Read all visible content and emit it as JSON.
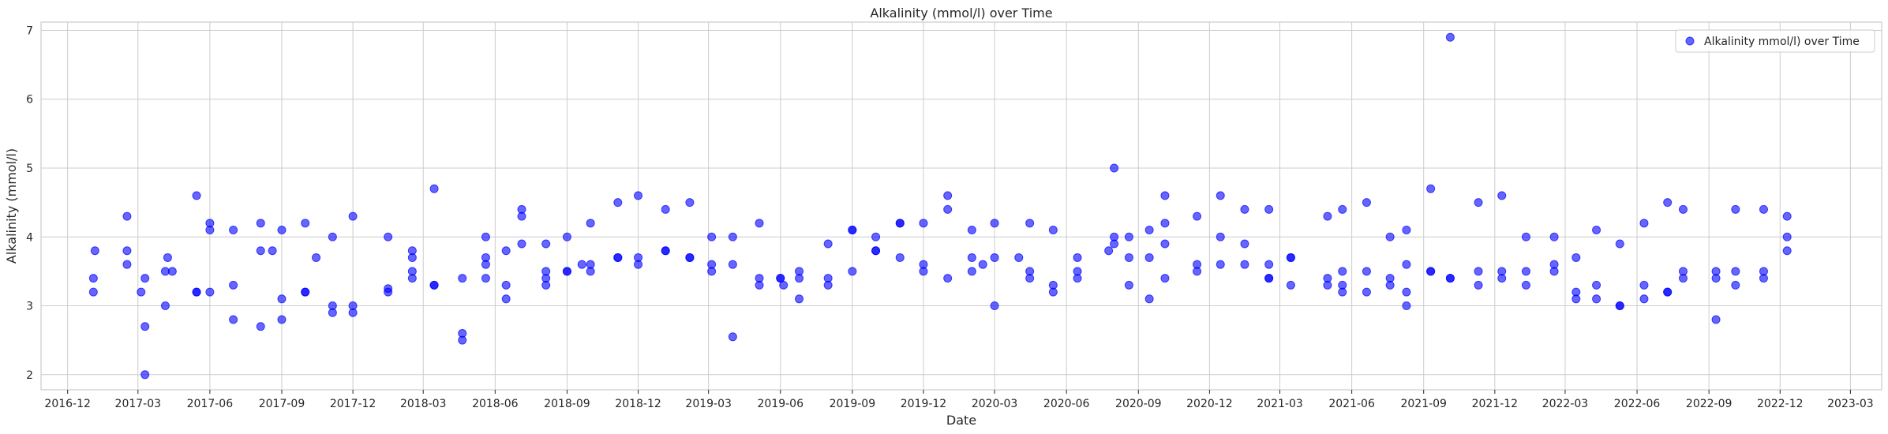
{
  "chart_data": {
    "type": "scatter",
    "title": "Alkalinity (mmol/l) over Time",
    "xlabel": "Date",
    "ylabel": "Alkalinity (mmol/l)",
    "x_axis": {
      "type": "date",
      "range": [
        "2016-10-28",
        "2023-04-10"
      ]
    },
    "ylim": [
      1.78,
      7.12
    ],
    "x_ticks": [
      "2016-12",
      "2017-03",
      "2017-06",
      "2017-09",
      "2017-12",
      "2018-03",
      "2018-06",
      "2018-09",
      "2018-12",
      "2019-03",
      "2019-06",
      "2019-09",
      "2019-12",
      "2020-03",
      "2020-06",
      "2020-09",
      "2020-12",
      "2021-03",
      "2021-06",
      "2021-09",
      "2021-12",
      "2022-03",
      "2022-06",
      "2022-09",
      "2022-12",
      "2023-03"
    ],
    "y_ticks": [
      2,
      3,
      4,
      5,
      6,
      7
    ],
    "grid": true,
    "legend": {
      "position": "top-right",
      "entries": [
        "Alkalinity mmol/l) over Time"
      ]
    },
    "marker_color": "#0000ff",
    "marker_alpha": 0.6,
    "series": [
      {
        "name": "Alkalinity mmol/l) over Time",
        "points": [
          [
            "2017-01-03",
            3.2
          ],
          [
            "2017-01-03",
            3.4
          ],
          [
            "2017-01-05",
            3.8
          ],
          [
            "2017-02-15",
            4.3
          ],
          [
            "2017-02-15",
            3.8
          ],
          [
            "2017-02-15",
            3.6
          ],
          [
            "2017-03-05",
            3.2
          ],
          [
            "2017-03-10",
            3.4
          ],
          [
            "2017-03-10",
            2.7
          ],
          [
            "2017-03-10",
            2.0
          ],
          [
            "2017-04-05",
            3.0
          ],
          [
            "2017-04-05",
            3.5
          ],
          [
            "2017-04-08",
            3.7
          ],
          [
            "2017-04-14",
            3.5
          ],
          [
            "2017-05-15",
            4.6
          ],
          [
            "2017-05-15",
            3.2
          ],
          [
            "2017-05-15",
            3.2
          ],
          [
            "2017-06-01",
            4.2
          ],
          [
            "2017-06-01",
            4.1
          ],
          [
            "2017-06-01",
            3.2
          ],
          [
            "2017-07-01",
            4.1
          ],
          [
            "2017-07-01",
            3.3
          ],
          [
            "2017-07-01",
            2.8
          ],
          [
            "2017-08-05",
            3.8
          ],
          [
            "2017-08-05",
            4.2
          ],
          [
            "2017-08-05",
            2.7
          ],
          [
            "2017-08-20",
            3.8
          ],
          [
            "2017-09-01",
            4.1
          ],
          [
            "2017-09-01",
            3.1
          ],
          [
            "2017-09-01",
            2.8
          ],
          [
            "2017-10-01",
            4.2
          ],
          [
            "2017-10-01",
            3.2
          ],
          [
            "2017-10-01",
            3.2
          ],
          [
            "2017-10-15",
            3.7
          ],
          [
            "2017-11-05",
            4.0
          ],
          [
            "2017-11-05",
            3.0
          ],
          [
            "2017-11-05",
            2.9
          ],
          [
            "2017-12-01",
            4.3
          ],
          [
            "2017-12-01",
            3.0
          ],
          [
            "2017-12-01",
            2.9
          ],
          [
            "2018-01-15",
            4.0
          ],
          [
            "2018-01-15",
            3.25
          ],
          [
            "2018-01-15",
            3.2
          ],
          [
            "2018-02-15",
            3.8
          ],
          [
            "2018-02-15",
            3.7
          ],
          [
            "2018-02-15",
            3.5
          ],
          [
            "2018-02-15",
            3.4
          ],
          [
            "2018-03-15",
            4.7
          ],
          [
            "2018-03-15",
            3.3
          ],
          [
            "2018-03-15",
            3.3
          ],
          [
            "2018-04-20",
            3.4
          ],
          [
            "2018-04-20",
            2.6
          ],
          [
            "2018-04-20",
            2.5
          ],
          [
            "2018-05-20",
            4.0
          ],
          [
            "2018-05-20",
            3.7
          ],
          [
            "2018-05-20",
            3.6
          ],
          [
            "2018-05-20",
            3.4
          ],
          [
            "2018-06-15",
            3.8
          ],
          [
            "2018-06-15",
            3.3
          ],
          [
            "2018-06-15",
            3.1
          ],
          [
            "2018-07-05",
            4.4
          ],
          [
            "2018-07-05",
            4.3
          ],
          [
            "2018-07-05",
            3.9
          ],
          [
            "2018-08-05",
            3.9
          ],
          [
            "2018-08-05",
            3.5
          ],
          [
            "2018-08-05",
            3.4
          ],
          [
            "2018-08-05",
            3.3
          ],
          [
            "2018-09-01",
            4.0
          ],
          [
            "2018-09-01",
            3.5
          ],
          [
            "2018-09-01",
            3.5
          ],
          [
            "2018-09-20",
            3.6
          ],
          [
            "2018-10-01",
            4.2
          ],
          [
            "2018-10-01",
            3.6
          ],
          [
            "2018-10-01",
            3.5
          ],
          [
            "2018-11-05",
            4.5
          ],
          [
            "2018-11-05",
            3.7
          ],
          [
            "2018-11-05",
            3.7
          ],
          [
            "2018-12-01",
            4.6
          ],
          [
            "2018-12-01",
            3.7
          ],
          [
            "2018-12-01",
            3.6
          ],
          [
            "2019-01-05",
            4.4
          ],
          [
            "2019-01-05",
            3.8
          ],
          [
            "2019-01-05",
            3.8
          ],
          [
            "2019-02-05",
            4.5
          ],
          [
            "2019-02-05",
            3.7
          ],
          [
            "2019-02-05",
            3.7
          ],
          [
            "2019-03-05",
            4.0
          ],
          [
            "2019-03-05",
            3.6
          ],
          [
            "2019-03-05",
            3.5
          ],
          [
            "2019-04-01",
            4.0
          ],
          [
            "2019-04-01",
            3.6
          ],
          [
            "2019-04-01",
            2.55
          ],
          [
            "2019-05-05",
            4.2
          ],
          [
            "2019-05-05",
            3.4
          ],
          [
            "2019-05-05",
            3.3
          ],
          [
            "2019-06-01",
            3.4
          ],
          [
            "2019-06-01",
            3.4
          ],
          [
            "2019-06-05",
            3.3
          ],
          [
            "2019-06-25",
            3.5
          ],
          [
            "2019-06-25",
            3.4
          ],
          [
            "2019-06-25",
            3.1
          ],
          [
            "2019-08-01",
            3.9
          ],
          [
            "2019-08-01",
            3.4
          ],
          [
            "2019-08-01",
            3.3
          ],
          [
            "2019-09-01",
            4.1
          ],
          [
            "2019-09-01",
            4.1
          ],
          [
            "2019-09-01",
            3.5
          ],
          [
            "2019-10-01",
            4.0
          ],
          [
            "2019-10-01",
            3.8
          ],
          [
            "2019-10-01",
            3.8
          ],
          [
            "2019-11-01",
            4.2
          ],
          [
            "2019-11-01",
            4.2
          ],
          [
            "2019-11-01",
            3.7
          ],
          [
            "2019-12-01",
            4.2
          ],
          [
            "2019-12-01",
            3.6
          ],
          [
            "2019-12-01",
            3.5
          ],
          [
            "2020-01-01",
            4.6
          ],
          [
            "2020-01-01",
            4.4
          ],
          [
            "2020-01-01",
            3.4
          ],
          [
            "2020-02-01",
            4.1
          ],
          [
            "2020-02-01",
            3.7
          ],
          [
            "2020-02-01",
            3.5
          ],
          [
            "2020-02-15",
            3.6
          ],
          [
            "2020-03-01",
            4.2
          ],
          [
            "2020-03-01",
            3.7
          ],
          [
            "2020-03-01",
            3.0
          ],
          [
            "2020-04-01",
            3.7
          ],
          [
            "2020-04-15",
            4.2
          ],
          [
            "2020-04-15",
            3.5
          ],
          [
            "2020-04-15",
            3.4
          ],
          [
            "2020-05-15",
            4.1
          ],
          [
            "2020-05-15",
            3.3
          ],
          [
            "2020-05-15",
            3.2
          ],
          [
            "2020-06-15",
            3.7
          ],
          [
            "2020-06-15",
            3.5
          ],
          [
            "2020-06-15",
            3.4
          ],
          [
            "2020-07-25",
            3.8
          ],
          [
            "2020-08-01",
            5.0
          ],
          [
            "2020-08-01",
            4.0
          ],
          [
            "2020-08-01",
            3.9
          ],
          [
            "2020-08-20",
            4.0
          ],
          [
            "2020-08-20",
            3.7
          ],
          [
            "2020-08-20",
            3.3
          ],
          [
            "2020-09-15",
            4.1
          ],
          [
            "2020-09-15",
            3.7
          ],
          [
            "2020-09-15",
            3.1
          ],
          [
            "2020-10-05",
            4.6
          ],
          [
            "2020-10-05",
            4.2
          ],
          [
            "2020-10-05",
            3.9
          ],
          [
            "2020-10-05",
            3.4
          ],
          [
            "2020-11-15",
            4.3
          ],
          [
            "2020-11-15",
            3.6
          ],
          [
            "2020-11-15",
            3.5
          ],
          [
            "2020-12-15",
            4.6
          ],
          [
            "2020-12-15",
            4.0
          ],
          [
            "2020-12-15",
            3.6
          ],
          [
            "2021-01-15",
            4.4
          ],
          [
            "2021-01-15",
            3.9
          ],
          [
            "2021-01-15",
            3.6
          ],
          [
            "2021-02-15",
            4.4
          ],
          [
            "2021-02-15",
            3.6
          ],
          [
            "2021-02-15",
            3.4
          ],
          [
            "2021-02-15",
            3.4
          ],
          [
            "2021-03-15",
            3.7
          ],
          [
            "2021-03-15",
            3.7
          ],
          [
            "2021-03-15",
            3.3
          ],
          [
            "2021-05-01",
            4.3
          ],
          [
            "2021-05-01",
            3.4
          ],
          [
            "2021-05-01",
            3.3
          ],
          [
            "2021-05-20",
            4.4
          ],
          [
            "2021-05-20",
            3.5
          ],
          [
            "2021-05-20",
            3.3
          ],
          [
            "2021-05-20",
            3.2
          ],
          [
            "2021-06-20",
            4.5
          ],
          [
            "2021-06-20",
            3.5
          ],
          [
            "2021-06-20",
            3.2
          ],
          [
            "2021-07-20",
            4.0
          ],
          [
            "2021-07-20",
            3.4
          ],
          [
            "2021-07-20",
            3.3
          ],
          [
            "2021-08-10",
            4.1
          ],
          [
            "2021-08-10",
            3.6
          ],
          [
            "2021-08-10",
            3.2
          ],
          [
            "2021-08-10",
            3.0
          ],
          [
            "2021-09-10",
            4.7
          ],
          [
            "2021-09-10",
            3.5
          ],
          [
            "2021-09-10",
            3.5
          ],
          [
            "2021-10-05",
            6.9
          ],
          [
            "2021-10-05",
            3.4
          ],
          [
            "2021-10-05",
            3.4
          ],
          [
            "2021-11-10",
            4.5
          ],
          [
            "2021-11-10",
            3.5
          ],
          [
            "2021-11-10",
            3.3
          ],
          [
            "2021-12-10",
            4.6
          ],
          [
            "2021-12-10",
            3.5
          ],
          [
            "2021-12-10",
            3.4
          ],
          [
            "2022-01-10",
            4.0
          ],
          [
            "2022-01-10",
            3.5
          ],
          [
            "2022-01-10",
            3.3
          ],
          [
            "2022-02-15",
            4.0
          ],
          [
            "2022-02-15",
            3.6
          ],
          [
            "2022-02-15",
            3.5
          ],
          [
            "2022-03-15",
            3.7
          ],
          [
            "2022-03-15",
            3.2
          ],
          [
            "2022-03-15",
            3.1
          ],
          [
            "2022-04-10",
            4.1
          ],
          [
            "2022-04-10",
            3.3
          ],
          [
            "2022-04-10",
            3.1
          ],
          [
            "2022-05-10",
            3.9
          ],
          [
            "2022-05-10",
            3.0
          ],
          [
            "2022-05-10",
            3.0
          ],
          [
            "2022-06-10",
            4.2
          ],
          [
            "2022-06-10",
            3.3
          ],
          [
            "2022-06-10",
            3.1
          ],
          [
            "2022-07-10",
            4.5
          ],
          [
            "2022-07-10",
            3.2
          ],
          [
            "2022-07-10",
            3.2
          ],
          [
            "2022-07-30",
            4.4
          ],
          [
            "2022-07-30",
            3.5
          ],
          [
            "2022-07-30",
            3.4
          ],
          [
            "2022-09-10",
            3.5
          ],
          [
            "2022-09-10",
            3.4
          ],
          [
            "2022-09-10",
            2.8
          ],
          [
            "2022-10-05",
            4.4
          ],
          [
            "2022-10-05",
            3.5
          ],
          [
            "2022-10-05",
            3.3
          ],
          [
            "2022-11-10",
            4.4
          ],
          [
            "2022-11-10",
            3.5
          ],
          [
            "2022-11-10",
            3.4
          ],
          [
            "2022-12-10",
            4.3
          ],
          [
            "2022-12-10",
            4.0
          ],
          [
            "2022-12-10",
            3.8
          ]
        ]
      }
    ]
  }
}
